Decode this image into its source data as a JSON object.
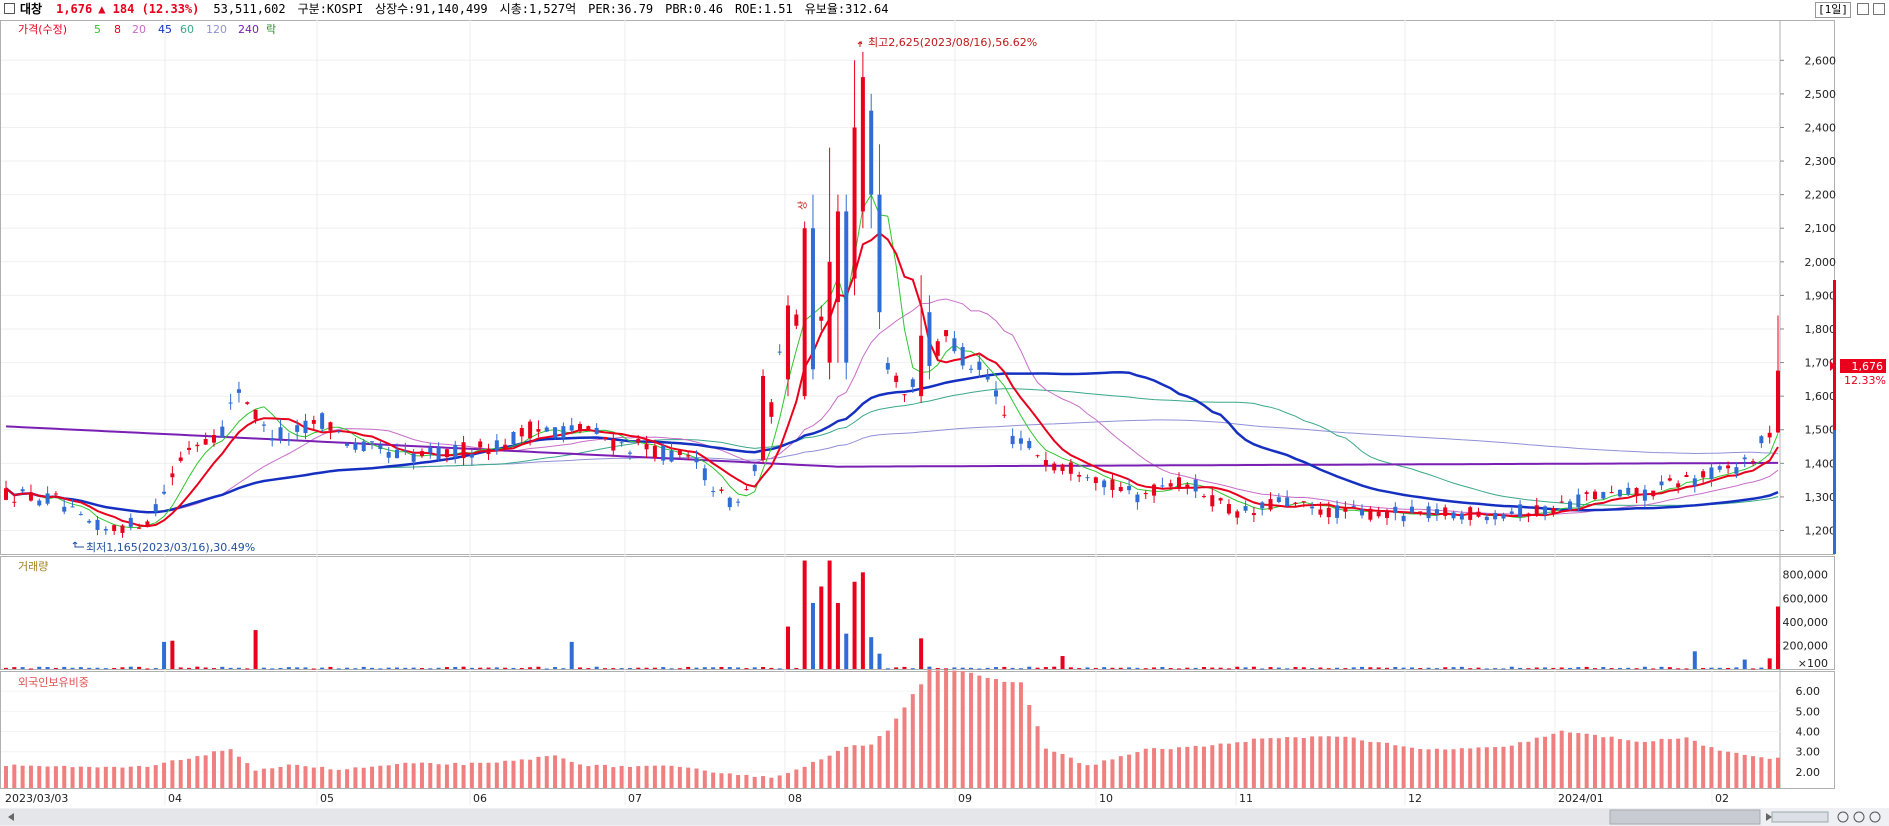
{
  "header": {
    "stock_name": "대창",
    "price": "1,676",
    "change": "▲ 184 (12.33%)",
    "volume": "53,511,602",
    "market": "구분:KOSPI",
    "shares": "상장수:91,140,499",
    "market_cap": "시총:1,527억",
    "per": "PER:36.79",
    "pbr": "PBR:0.46",
    "roe": "ROE:1.51",
    "reserve_ratio": "유보율:312.64",
    "period_button": "[1일]"
  },
  "colors": {
    "up": "#e8001c",
    "down": "#2f6cd3",
    "ma5": "#2ec52e",
    "ma8": "#e8001c",
    "ma20": "#c86ec8",
    "ma45": "#1530c0",
    "ma60": "#3aa88a",
    "ma120": "#9090d8",
    "ma240": "#7a1fb4",
    "foreign_bar": "#f08080"
  },
  "chart_data": [
    {
      "type": "candlestick",
      "panel": "price",
      "legend": [
        "가격(수정)",
        "5",
        "8",
        "20",
        "45",
        "60",
        "120",
        "240",
        "락"
      ],
      "x_tick_labels": [
        "2023/03/03",
        "04",
        "05",
        "06",
        "07",
        "08",
        "09",
        "10",
        "11",
        "12",
        "2024/01",
        "02"
      ],
      "y_tick_labels": [
        "1,200",
        "1,300",
        "1,400",
        "1,500",
        "1,600",
        "1,700",
        "1,800",
        "1,900",
        "2,000",
        "2,100",
        "2,200",
        "2,300",
        "2,400",
        "2,500",
        "2,600"
      ],
      "ylim": [
        1130,
        2720
      ],
      "annotations": {
        "high": "최고2,625(2023/08/16),56.62%",
        "low": "최저1,165(2023/03/16),30.49%",
        "rise_marker": "상"
      },
      "current_price_label": "1,676",
      "current_change_label": "12.33%",
      "anchors": [
        {
          "t": 0,
          "v": 1310
        },
        {
          "t": 6,
          "v": 1290
        },
        {
          "t": 9,
          "v": 1230
        },
        {
          "t": 12,
          "v": 1200
        },
        {
          "t": 17,
          "v": 1230
        },
        {
          "t": 19,
          "v": 1320
        },
        {
          "t": 22,
          "v": 1450
        },
        {
          "t": 26,
          "v": 1500
        },
        {
          "t": 28,
          "v": 1630
        },
        {
          "t": 31,
          "v": 1500
        },
        {
          "t": 34,
          "v": 1480
        },
        {
          "t": 38,
          "v": 1530
        },
        {
          "t": 42,
          "v": 1450
        },
        {
          "t": 48,
          "v": 1420
        },
        {
          "t": 53,
          "v": 1430
        },
        {
          "t": 60,
          "v": 1460
        },
        {
          "t": 63,
          "v": 1500
        },
        {
          "t": 70,
          "v": 1500
        },
        {
          "t": 73,
          "v": 1460
        },
        {
          "t": 78,
          "v": 1440
        },
        {
          "t": 83,
          "v": 1400
        },
        {
          "t": 86,
          "v": 1300
        },
        {
          "t": 88,
          "v": 1280
        },
        {
          "t": 91,
          "v": 1420
        },
        {
          "t": 94,
          "v": 1850
        },
        {
          "t": 96,
          "v": 1820
        },
        {
          "t": 98,
          "v": 1850
        },
        {
          "t": 100,
          "v": 2200
        },
        {
          "t": 103,
          "v": 2625
        },
        {
          "t": 104,
          "v": 2300
        },
        {
          "t": 106,
          "v": 1700
        },
        {
          "t": 108,
          "v": 1620
        },
        {
          "t": 111,
          "v": 1680
        },
        {
          "t": 113,
          "v": 1790
        },
        {
          "t": 115,
          "v": 1720
        },
        {
          "t": 118,
          "v": 1650
        },
        {
          "t": 121,
          "v": 1480
        },
        {
          "t": 126,
          "v": 1400
        },
        {
          "t": 130,
          "v": 1380
        },
        {
          "t": 133,
          "v": 1330
        },
        {
          "t": 136,
          "v": 1300
        },
        {
          "t": 140,
          "v": 1350
        },
        {
          "t": 143,
          "v": 1330
        },
        {
          "t": 147,
          "v": 1260
        },
        {
          "t": 150,
          "v": 1250
        },
        {
          "t": 153,
          "v": 1290
        },
        {
          "t": 157,
          "v": 1260
        },
        {
          "t": 165,
          "v": 1250
        },
        {
          "t": 175,
          "v": 1250
        },
        {
          "t": 185,
          "v": 1260
        },
        {
          "t": 190,
          "v": 1300
        },
        {
          "t": 197,
          "v": 1310
        },
        {
          "t": 202,
          "v": 1350
        },
        {
          "t": 207,
          "v": 1380
        },
        {
          "t": 210,
          "v": 1420
        },
        {
          "t": 212,
          "v": 1492
        },
        {
          "t": 213,
          "v": 1676
        }
      ],
      "special_candles": [
        {
          "t": 91,
          "o": 1410,
          "h": 1680,
          "l": 1400,
          "c": 1660
        },
        {
          "t": 94,
          "o": 1650,
          "h": 1900,
          "l": 1600,
          "c": 1870
        },
        {
          "t": 96,
          "o": 1600,
          "h": 2120,
          "l": 1590,
          "c": 2100
        },
        {
          "t": 97,
          "o": 2100,
          "h": 2200,
          "l": 1650,
          "c": 1680
        },
        {
          "t": 99,
          "o": 1700,
          "h": 2340,
          "l": 1650,
          "c": 2000
        },
        {
          "t": 100,
          "o": 1880,
          "h": 2200,
          "l": 1700,
          "c": 2150
        },
        {
          "t": 101,
          "o": 2150,
          "h": 2200,
          "l": 1650,
          "c": 1700
        },
        {
          "t": 102,
          "o": 1950,
          "h": 2600,
          "l": 1900,
          "c": 2400
        },
        {
          "t": 103,
          "o": 2150,
          "h": 2625,
          "l": 2100,
          "c": 2550
        },
        {
          "t": 104,
          "o": 2450,
          "h": 2500,
          "l": 2100,
          "c": 2200
        },
        {
          "t": 105,
          "o": 2200,
          "h": 2350,
          "l": 1800,
          "c": 1850
        },
        {
          "t": 110,
          "o": 1600,
          "h": 1960,
          "l": 1580,
          "c": 1780
        },
        {
          "t": 111,
          "o": 1850,
          "h": 1900,
          "l": 1650,
          "c": 1690
        },
        {
          "t": 213,
          "o": 1492,
          "h": 1840,
          "l": 1490,
          "c": 1676
        }
      ]
    },
    {
      "type": "bar",
      "panel": "volume",
      "label": "거래량",
      "y_tick_labels": [
        "800,000",
        "600,000",
        "400,000",
        "200,000",
        "×100"
      ],
      "ylim": [
        0,
        950000
      ],
      "spikes": [
        {
          "t": 19,
          "v": 230000
        },
        {
          "t": 20,
          "v": 240000
        },
        {
          "t": 30,
          "v": 330000
        },
        {
          "t": 68,
          "v": 230000
        },
        {
          "t": 94,
          "v": 360000
        },
        {
          "t": 96,
          "v": 920000
        },
        {
          "t": 97,
          "v": 560000
        },
        {
          "t": 98,
          "v": 700000
        },
        {
          "t": 99,
          "v": 920000
        },
        {
          "t": 100,
          "v": 560000
        },
        {
          "t": 101,
          "v": 300000
        },
        {
          "t": 102,
          "v": 740000
        },
        {
          "t": 103,
          "v": 820000
        },
        {
          "t": 104,
          "v": 270000
        },
        {
          "t": 105,
          "v": 130000
        },
        {
          "t": 110,
          "v": 260000
        },
        {
          "t": 127,
          "v": 110000
        },
        {
          "t": 203,
          "v": 150000
        },
        {
          "t": 209,
          "v": 80000
        },
        {
          "t": 212,
          "v": 90000
        },
        {
          "t": 213,
          "v": 530000
        }
      ]
    },
    {
      "type": "bar",
      "panel": "foreign_ownership",
      "label": "외국인보유비중",
      "y_tick_labels": [
        "6.00",
        "5.00",
        "4.00",
        "3.00",
        "2.00"
      ],
      "ylim": [
        1.2,
        7.0
      ],
      "anchors": [
        {
          "t": 0,
          "v": 2.35
        },
        {
          "t": 10,
          "v": 2.2
        },
        {
          "t": 17,
          "v": 2.25
        },
        {
          "t": 21,
          "v": 2.6
        },
        {
          "t": 27,
          "v": 3.15
        },
        {
          "t": 30,
          "v": 2.0
        },
        {
          "t": 34,
          "v": 2.4
        },
        {
          "t": 40,
          "v": 2.1
        },
        {
          "t": 48,
          "v": 2.4
        },
        {
          "t": 58,
          "v": 2.4
        },
        {
          "t": 66,
          "v": 2.8
        },
        {
          "t": 70,
          "v": 2.3
        },
        {
          "t": 80,
          "v": 2.25
        },
        {
          "t": 92,
          "v": 1.7
        },
        {
          "t": 98,
          "v": 2.6
        },
        {
          "t": 101,
          "v": 3.2
        },
        {
          "t": 104,
          "v": 3.4
        },
        {
          "t": 106,
          "v": 4.1
        },
        {
          "t": 110,
          "v": 6.4
        },
        {
          "t": 111,
          "v": 7.1
        },
        {
          "t": 115,
          "v": 7.0
        },
        {
          "t": 118,
          "v": 6.6
        },
        {
          "t": 122,
          "v": 6.4
        },
        {
          "t": 125,
          "v": 3.2
        },
        {
          "t": 130,
          "v": 2.3
        },
        {
          "t": 137,
          "v": 3.1
        },
        {
          "t": 145,
          "v": 3.3
        },
        {
          "t": 150,
          "v": 3.6
        },
        {
          "t": 160,
          "v": 3.8
        },
        {
          "t": 170,
          "v": 3.1
        },
        {
          "t": 180,
          "v": 3.2
        },
        {
          "t": 187,
          "v": 4.0
        },
        {
          "t": 197,
          "v": 3.5
        },
        {
          "t": 202,
          "v": 3.7
        },
        {
          "t": 206,
          "v": 3.0
        },
        {
          "t": 212,
          "v": 2.7
        },
        {
          "t": 213,
          "v": 2.7
        }
      ]
    }
  ]
}
